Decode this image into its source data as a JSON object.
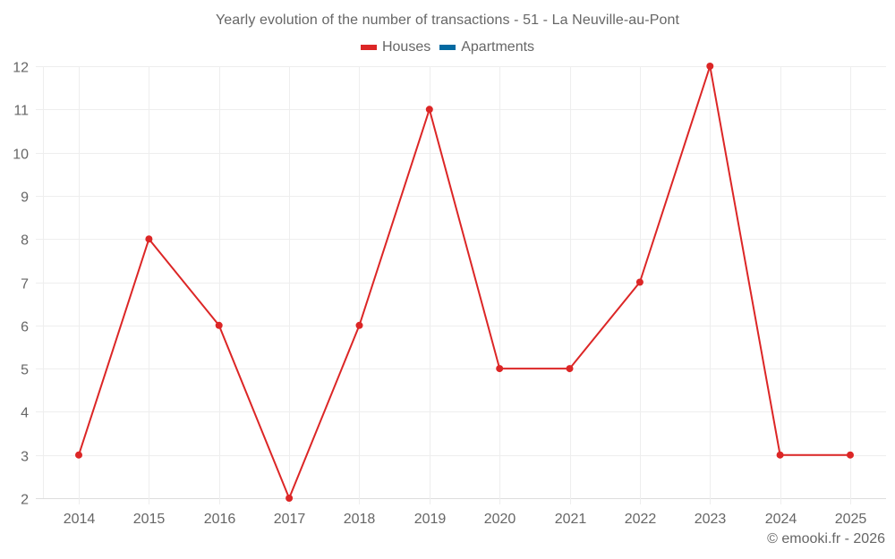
{
  "title": "Yearly evolution of the number of transactions - 51 - La Neuville-au-Pont",
  "legend": [
    {
      "label": "Houses",
      "color": "#dc2626"
    },
    {
      "label": "Apartments",
      "color": "#0369a1"
    }
  ],
  "credit": "© emooki.fr - 2026",
  "colors": {
    "houses": "#dc2626",
    "apartments": "#0369a1",
    "grid": "#eeeeee",
    "axis": "#dddddd",
    "text": "#666666"
  },
  "chart_data": {
    "type": "line",
    "title": "Yearly evolution of the number of transactions - 51 - La Neuville-au-Pont",
    "xlabel": "",
    "ylabel": "",
    "categories": [
      "2014",
      "2015",
      "2016",
      "2017",
      "2018",
      "2019",
      "2020",
      "2021",
      "2022",
      "2023",
      "2024",
      "2025"
    ],
    "series": [
      {
        "name": "Houses",
        "color": "#dc2626",
        "values": [
          3,
          8,
          6,
          2,
          6,
          11,
          5,
          5,
          7,
          12,
          3,
          3
        ]
      },
      {
        "name": "Apartments",
        "color": "#0369a1",
        "values": []
      }
    ],
    "ylim": [
      2,
      12
    ],
    "yticks": [
      2,
      3,
      4,
      5,
      6,
      7,
      8,
      9,
      10,
      11,
      12
    ],
    "grid": true,
    "legend_position": "top"
  }
}
